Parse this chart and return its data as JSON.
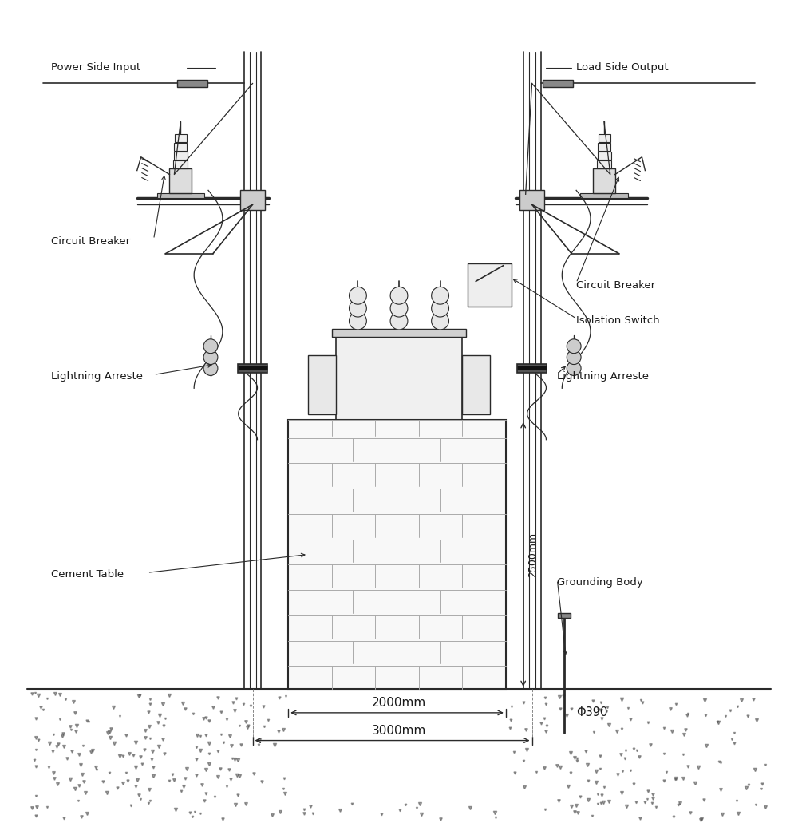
{
  "bg_color": "#ffffff",
  "line_color": "#2a2a2a",
  "text_color": "#1a1a1a",
  "fig_w": 10.0,
  "fig_h": 10.41,
  "dpi": 100,
  "labels": {
    "power_side_input": "Power Side Input",
    "load_side_output": "Load Side Output",
    "circuit_breaker_left": "Circuit Breaker",
    "circuit_breaker_right": "Circuit Breaker",
    "isolation_switch": "Isolation Switch",
    "lightning_arreste_left": "Lightning Arreste",
    "lightning_arreste_right": "Lightning Arreste",
    "cement_table": "Cement Table",
    "grounding_body": "Grounding Body",
    "dim_2000": "2000mm",
    "dim_3000": "3000mm",
    "dim_2500": "2500mm",
    "dim_phi390": "Φ390"
  }
}
